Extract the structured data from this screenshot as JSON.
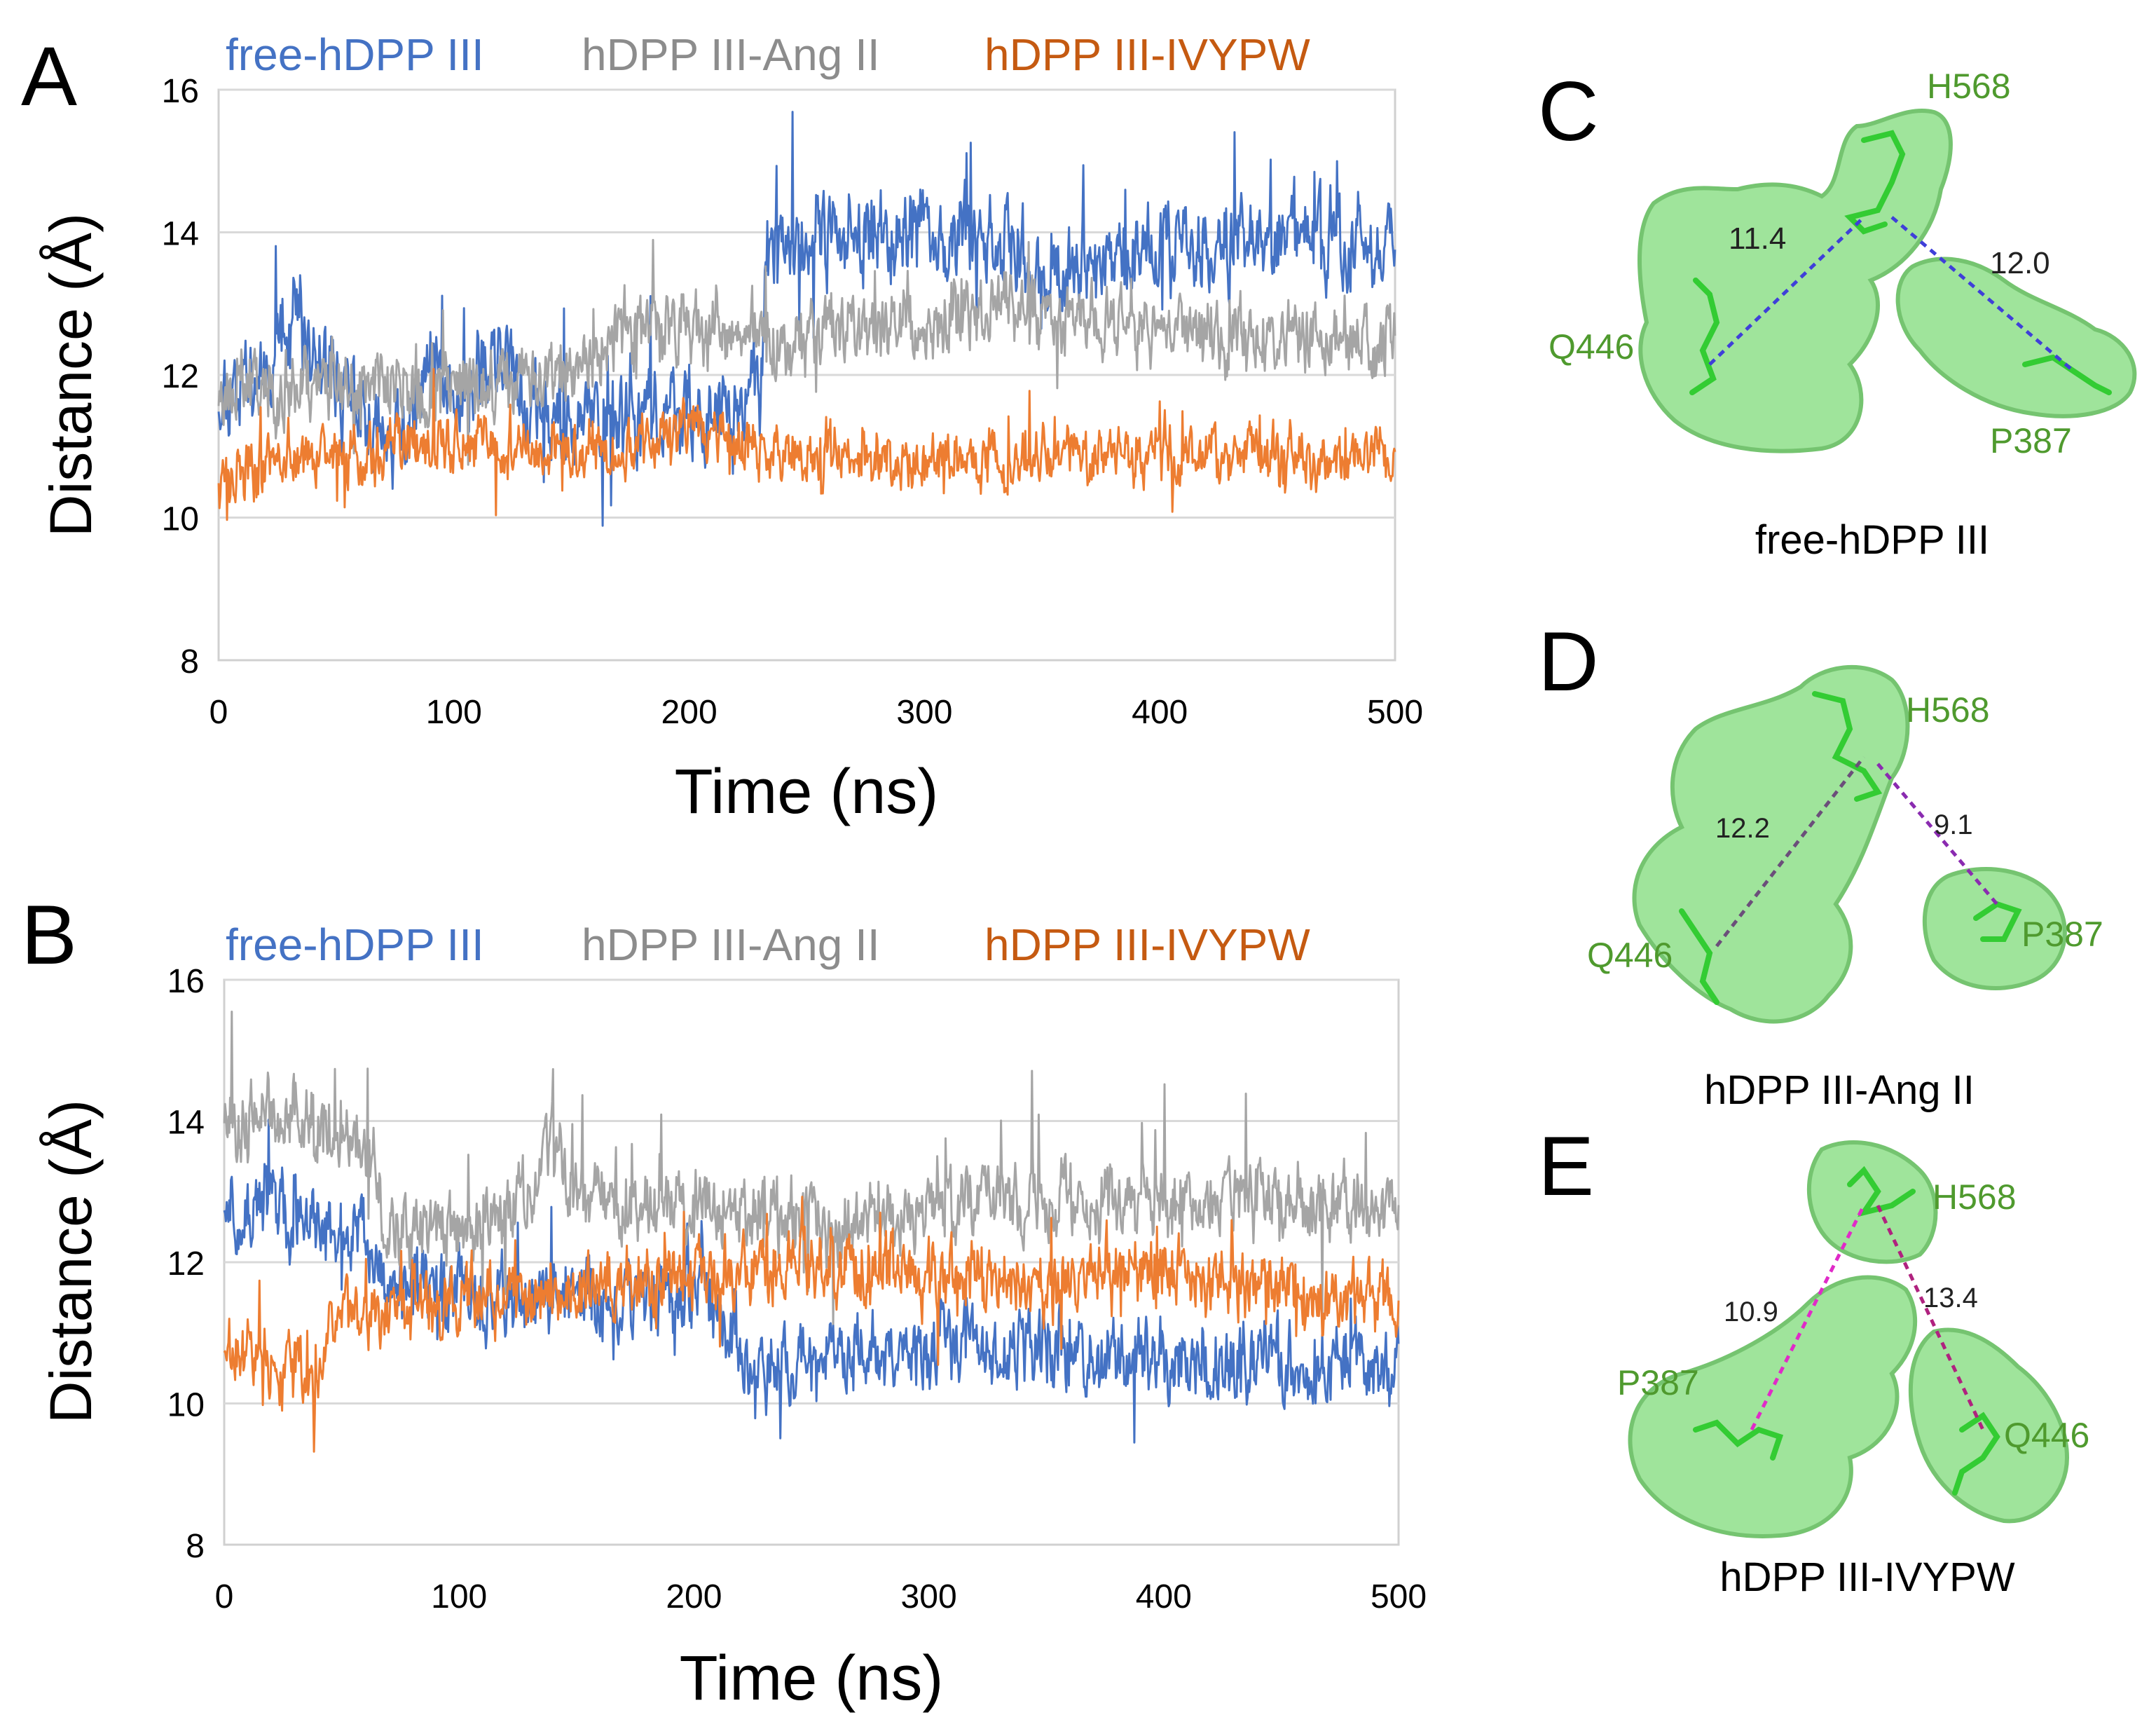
{
  "colors": {
    "free": "#4472C4",
    "ang": "#A5A5A5",
    "ivypw": "#ED7D31",
    "legend_ivypw": "#C55A11",
    "surface": "#8FE08A",
    "surface_edge": "#5DBA58",
    "stick": "#33CC33",
    "label_green": "#4F9A2E"
  },
  "chart_data": [
    {
      "id": "A",
      "panel_label": "A",
      "type": "line",
      "xlabel": "Time (ns)",
      "ylabel": "Distance (Å)",
      "xlim": [
        0,
        500
      ],
      "ylim": [
        8,
        16
      ],
      "x_ticks": [
        "0",
        "100",
        "200",
        "300",
        "400",
        "500"
      ],
      "y_ticks": [
        "8",
        "10",
        "12",
        "14",
        "16"
      ],
      "grid": true,
      "legend": [
        "free-hDPP III",
        "hDPP III-Ang II",
        "hDPP III-IVYPW"
      ],
      "legend_position": "top",
      "series": [
        {
          "name": "free-hDPP III",
          "color_key": "free",
          "noise": 0.45,
          "spike": 1.1,
          "seed": 11,
          "knots": [
            [
              0,
              11.8
            ],
            [
              20,
              12.2
            ],
            [
              35,
              12.6
            ],
            [
              60,
              11.4
            ],
            [
              80,
              11.0
            ],
            [
              90,
              12.3
            ],
            [
              100,
              11.6
            ],
            [
              120,
              12.2
            ],
            [
              140,
              11.3
            ],
            [
              160,
              11.4
            ],
            [
              180,
              11.6
            ],
            [
              200,
              11.5
            ],
            [
              230,
              11.6
            ],
            [
              233,
              13.8
            ],
            [
              260,
              13.9
            ],
            [
              300,
              14.0
            ],
            [
              340,
              13.8
            ],
            [
              345,
              13.4
            ],
            [
              400,
              13.8
            ],
            [
              450,
              13.9
            ],
            [
              500,
              13.9
            ]
          ]
        },
        {
          "name": "hDPP III-Ang II",
          "color_key": "ang",
          "noise": 0.38,
          "spike": 0.6,
          "seed": 23,
          "knots": [
            [
              0,
              11.8
            ],
            [
              50,
              11.9
            ],
            [
              100,
              11.8
            ],
            [
              140,
              12.0
            ],
            [
              170,
              12.6
            ],
            [
              200,
              12.7
            ],
            [
              250,
              12.6
            ],
            [
              300,
              12.7
            ],
            [
              340,
              13.0
            ],
            [
              400,
              12.6
            ],
            [
              450,
              12.6
            ],
            [
              500,
              12.4
            ]
          ]
        },
        {
          "name": "hDPP III-IVYPW",
          "color_key": "ivypw",
          "noise": 0.3,
          "spike": 0.5,
          "seed": 37,
          "knots": [
            [
              0,
              10.6
            ],
            [
              50,
              10.9
            ],
            [
              100,
              11.0
            ],
            [
              150,
              11.0
            ],
            [
              200,
              11.2
            ],
            [
              250,
              10.9
            ],
            [
              300,
              10.8
            ],
            [
              350,
              10.9
            ],
            [
              400,
              10.9
            ],
            [
              450,
              10.9
            ],
            [
              500,
              10.9
            ]
          ]
        }
      ]
    },
    {
      "id": "B",
      "panel_label": "B",
      "type": "line",
      "xlabel": "Time (ns)",
      "ylabel": "Distance (Å)",
      "xlim": [
        0,
        500
      ],
      "ylim": [
        8,
        16
      ],
      "x_ticks": [
        "0",
        "100",
        "200",
        "300",
        "400",
        "500"
      ],
      "y_ticks": [
        "8",
        "10",
        "12",
        "14",
        "16"
      ],
      "grid": true,
      "legend": [
        "free-hDPP III",
        "hDPP III-Ang II",
        "hDPP III-IVYPW"
      ],
      "legend_position": "top",
      "series": [
        {
          "name": "free-hDPP III",
          "color_key": "free",
          "noise": 0.4,
          "spike": 0.6,
          "seed": 51,
          "knots": [
            [
              0,
              12.8
            ],
            [
              30,
              12.7
            ],
            [
              60,
              12.4
            ],
            [
              70,
              11.5
            ],
            [
              100,
              11.5
            ],
            [
              150,
              11.5
            ],
            [
              200,
              11.5
            ],
            [
              215,
              11.3
            ],
            [
              222,
              10.5
            ],
            [
              250,
              10.6
            ],
            [
              300,
              10.8
            ],
            [
              350,
              10.8
            ],
            [
              400,
              10.6
            ],
            [
              450,
              10.6
            ],
            [
              500,
              10.5
            ]
          ]
        },
        {
          "name": "hDPP III-Ang II",
          "color_key": "ang",
          "noise": 0.38,
          "spike": 0.9,
          "seed": 63,
          "knots": [
            [
              0,
              14.0
            ],
            [
              30,
              14.1
            ],
            [
              62,
              13.8
            ],
            [
              68,
              12.5
            ],
            [
              100,
              12.4
            ],
            [
              125,
              12.8
            ],
            [
              140,
              13.6
            ],
            [
              150,
              12.9
            ],
            [
              200,
              12.8
            ],
            [
              250,
              12.6
            ],
            [
              300,
              12.8
            ],
            [
              350,
              12.9
            ],
            [
              400,
              12.9
            ],
            [
              450,
              12.9
            ],
            [
              500,
              12.8
            ]
          ]
        },
        {
          "name": "hDPP III-IVYPW",
          "color_key": "ivypw",
          "noise": 0.35,
          "spike": 0.6,
          "seed": 79,
          "knots": [
            [
              0,
              10.9
            ],
            [
              20,
              10.6
            ],
            [
              40,
              10.4
            ],
            [
              45,
              11.2
            ],
            [
              100,
              11.4
            ],
            [
              150,
              11.6
            ],
            [
              200,
              11.8
            ],
            [
              250,
              12.0
            ],
            [
              300,
              11.8
            ],
            [
              350,
              11.7
            ],
            [
              400,
              11.9
            ],
            [
              450,
              11.6
            ],
            [
              500,
              11.4
            ]
          ]
        }
      ]
    }
  ],
  "structures": [
    {
      "id": "C",
      "panel_label": "C",
      "caption": "free-hDPP III",
      "distances": [
        {
          "value": "11.4"
        },
        {
          "value": "12.0"
        }
      ],
      "residues": [
        "H568",
        "Q446",
        "P387"
      ],
      "line_color": "#3F3FD9"
    },
    {
      "id": "D",
      "panel_label": "D",
      "caption": "hDPP III-Ang II",
      "distances": [
        {
          "value": "12.2"
        },
        {
          "value": "9.1"
        }
      ],
      "residues": [
        "H568",
        "Q446",
        "P387"
      ],
      "line_color": "#8A2BB0"
    },
    {
      "id": "E",
      "panel_label": "E",
      "caption": "hDPP III-IVYPW",
      "distances": [
        {
          "value": "10.9"
        },
        {
          "value": "13.4"
        }
      ],
      "residues": [
        "H568",
        "P387",
        "Q446"
      ],
      "line_color": "#E02AC8"
    }
  ]
}
